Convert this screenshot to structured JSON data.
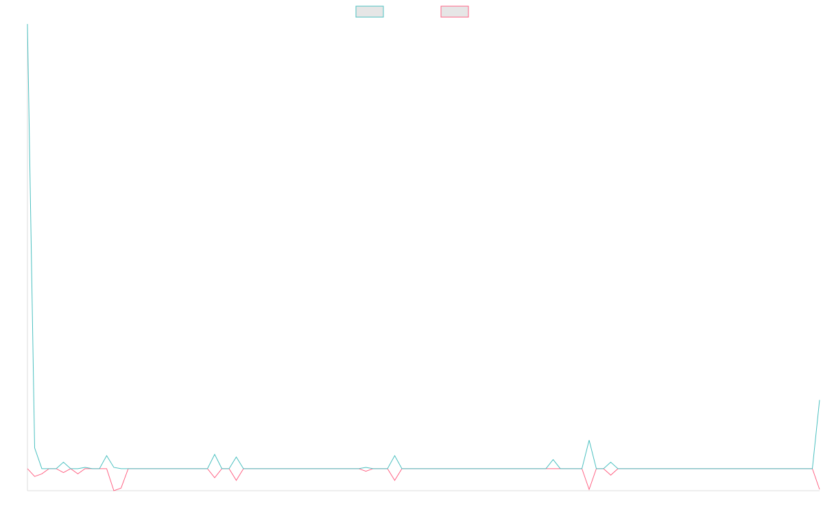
{
  "chart_data": {
    "type": "line",
    "title": "",
    "xlabel": "",
    "ylabel": "",
    "ylim": [
      -17,
      343
    ],
    "grid": false,
    "legend_position": "top-center",
    "series": [
      {
        "name": "",
        "color": "#4bc0c0",
        "values": [
          343,
          16,
          0,
          0,
          0,
          5,
          0,
          0,
          1,
          0,
          0,
          10,
          1,
          0,
          0,
          0,
          0,
          0,
          0,
          0,
          0,
          0,
          0,
          0,
          0,
          0,
          11,
          0,
          0,
          9,
          0,
          0,
          0,
          0,
          0,
          0,
          0,
          0,
          0,
          0,
          0,
          0,
          0,
          0,
          0,
          0,
          0,
          1,
          0,
          0,
          0,
          10,
          0,
          0,
          0,
          0,
          0,
          0,
          0,
          0,
          0,
          0,
          0,
          0,
          0,
          0,
          0,
          0,
          0,
          0,
          0,
          0,
          0,
          7,
          0,
          0,
          0,
          0,
          22,
          0,
          0,
          5,
          0,
          0,
          0,
          0,
          0,
          0,
          0,
          0,
          0,
          0,
          0,
          0,
          0,
          0,
          0,
          0,
          0,
          0,
          0,
          0,
          0,
          0,
          0,
          0,
          0,
          0,
          0,
          0,
          53
        ]
      },
      {
        "name": "",
        "color": "#ff6384",
        "values": [
          0,
          -6,
          -4,
          0,
          0,
          -3,
          0,
          -4,
          0,
          0,
          0,
          0,
          -17,
          -15,
          0,
          0,
          0,
          0,
          0,
          0,
          0,
          0,
          0,
          0,
          0,
          0,
          -7,
          0,
          0,
          -9,
          0,
          0,
          0,
          0,
          0,
          0,
          0,
          0,
          0,
          0,
          0,
          0,
          0,
          0,
          0,
          0,
          0,
          -2,
          0,
          0,
          0,
          -9,
          0,
          0,
          0,
          0,
          0,
          0,
          0,
          0,
          0,
          0,
          0,
          0,
          0,
          0,
          0,
          0,
          0,
          0,
          0,
          0,
          0,
          0,
          0,
          0,
          0,
          0,
          -16,
          0,
          0,
          -5,
          0,
          0,
          0,
          0,
          0,
          0,
          0,
          0,
          0,
          0,
          0,
          0,
          0,
          0,
          0,
          0,
          0,
          0,
          0,
          0,
          0,
          0,
          0,
          0,
          0,
          0,
          0,
          0,
          -16
        ]
      }
    ]
  }
}
